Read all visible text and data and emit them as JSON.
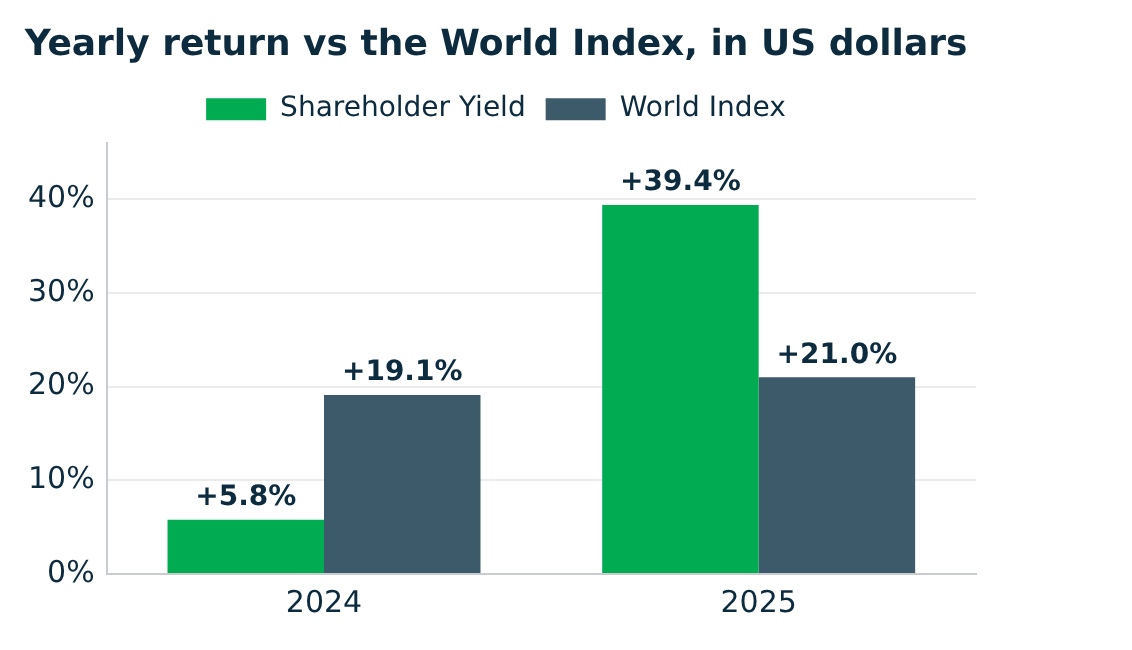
{
  "chart_data": {
    "type": "bar",
    "title": "Yearly return vs the World Index, in US dollars",
    "categories": [
      "2024",
      "2025"
    ],
    "series": [
      {
        "name": "Shareholder Yield",
        "color": "#00ab52",
        "values": [
          5.8,
          39.4
        ],
        "value_labels": [
          "+5.8%",
          "+39.4%"
        ]
      },
      {
        "name": "World Index",
        "color": "#3d5a6b",
        "values": [
          19.1,
          21.0
        ],
        "value_labels": [
          "+19.1%",
          "+21.0%"
        ]
      }
    ],
    "ylim": [
      0,
      46
    ],
    "yticks": [
      {
        "value": 0,
        "label": "0%"
      },
      {
        "value": 10,
        "label": "10%"
      },
      {
        "value": 20,
        "label": "20%"
      },
      {
        "value": 30,
        "label": "30%"
      },
      {
        "value": 40,
        "label": "40%"
      }
    ],
    "grid": "y",
    "legend": "top"
  }
}
